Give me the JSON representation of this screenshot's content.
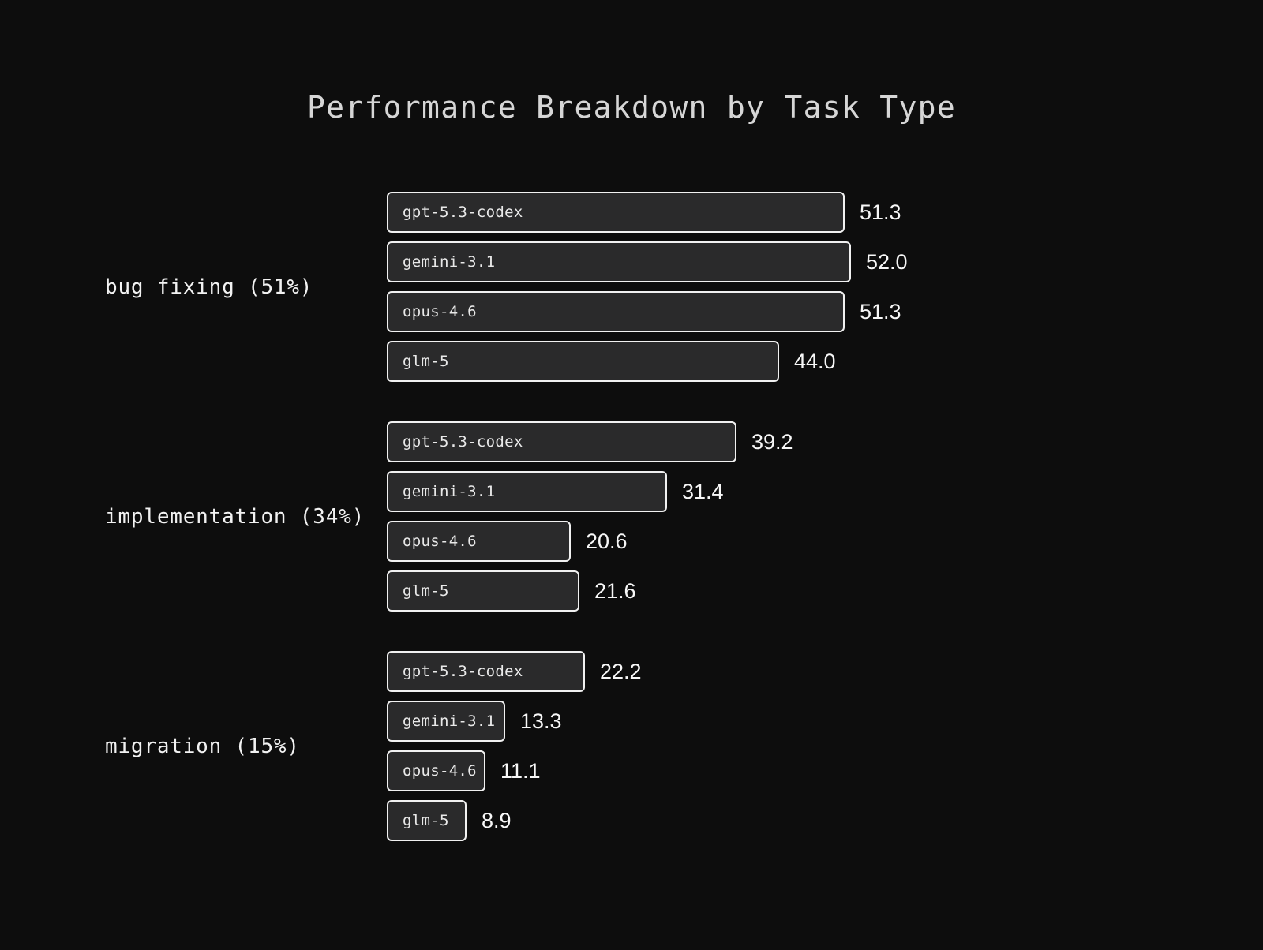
{
  "colors": {
    "background": "#0d0d0d",
    "bar_fill": "#2a2a2b",
    "bar_border": "#f1f1f1",
    "bar_label_text": "#e9e9e9",
    "value_text": "#f7f7f7",
    "group_label_text": "#f2f2f2",
    "title_text": "#d6d6d6"
  },
  "chart_data": {
    "type": "bar",
    "orientation": "horizontal",
    "title": "Performance Breakdown by Task Type",
    "categories": [
      "bug fixing (51%)",
      "implementation (34%)",
      "migration (15%)"
    ],
    "series": [
      {
        "name": "gpt-5.3-codex",
        "values": [
          51.3,
          39.2,
          22.2
        ]
      },
      {
        "name": "gemini-3.1",
        "values": [
          52.0,
          31.4,
          13.3
        ]
      },
      {
        "name": "opus-4.6",
        "values": [
          51.3,
          20.6,
          11.1
        ]
      },
      {
        "name": "glm-5",
        "values": [
          44.0,
          21.6,
          8.9
        ]
      }
    ],
    "xlim": [
      0,
      52
    ],
    "grid": false,
    "legend": "none",
    "bar_name_label_position": "inside-left",
    "value_label_position": "outside-right",
    "value_format": "one_decimal"
  }
}
